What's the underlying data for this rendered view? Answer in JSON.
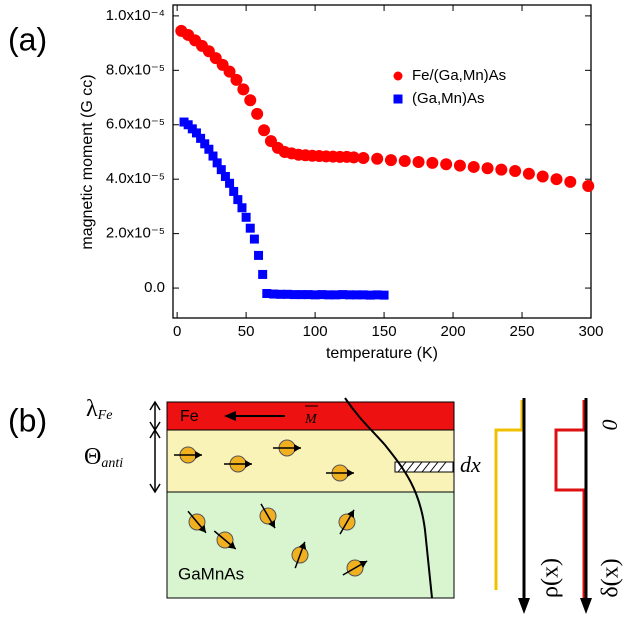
{
  "chart_data": {
    "type": "scatter",
    "panel_label": "(a)",
    "x_label": "temperature (K)",
    "y_label": "magnetic moment (G cc)",
    "xlim": [
      -3,
      300
    ],
    "xticks": [
      0,
      50,
      100,
      150,
      200,
      250,
      300
    ],
    "ylim": [
      -1.1e-05,
      0.000104
    ],
    "yticks": [
      {
        "value": 0,
        "label": "0.0"
      },
      {
        "value": 2e-05,
        "label": "2.0x10⁻⁵"
      },
      {
        "value": 4e-05,
        "label": "4.0x10⁻⁵"
      },
      {
        "value": 6e-05,
        "label": "6.0x10⁻⁵"
      },
      {
        "value": 8e-05,
        "label": "8.0x10⁻⁵"
      },
      {
        "value": 0.0001,
        "label": "1.0x10⁻⁴"
      }
    ],
    "legend": "upper right",
    "series": [
      {
        "name": "Fe/(Ga,Mn)As",
        "color": "#ff0000",
        "marker": "circle",
        "x": [
          3,
          8,
          13,
          18,
          23,
          28,
          33,
          38,
          43,
          48,
          53,
          58,
          63,
          68,
          73,
          78,
          83,
          88,
          93,
          98,
          103,
          108,
          113,
          118,
          123,
          128,
          135,
          145,
          155,
          165,
          175,
          185,
          195,
          205,
          215,
          225,
          235,
          245,
          255,
          265,
          275,
          285,
          298
        ],
        "values": [
          9.45e-05,
          9.3e-05,
          9.1e-05,
          8.9e-05,
          8.7e-05,
          8.45e-05,
          8.2e-05,
          7.95e-05,
          7.65e-05,
          7.3e-05,
          6.9e-05,
          6.4e-05,
          5.8e-05,
          5.4e-05,
          5.15e-05,
          5e-05,
          4.95e-05,
          4.9e-05,
          4.88e-05,
          4.86e-05,
          4.85e-05,
          4.84e-05,
          4.83e-05,
          4.82e-05,
          4.82e-05,
          4.8e-05,
          4.78e-05,
          4.75e-05,
          4.7e-05,
          4.67e-05,
          4.63e-05,
          4.6e-05,
          4.55e-05,
          4.5e-05,
          4.45e-05,
          4.4e-05,
          4.35e-05,
          4.3e-05,
          4.2e-05,
          4.1e-05,
          4e-05,
          3.9e-05,
          3.75e-05
        ]
      },
      {
        "name": "(Ga,Mn)As",
        "color": "#0000ff",
        "marker": "square",
        "x": [
          5,
          8,
          11,
          14,
          17,
          20,
          23,
          26,
          29,
          32,
          35,
          38,
          41,
          44,
          47,
          50,
          53,
          56,
          59,
          62,
          65,
          70,
          75,
          80,
          85,
          90,
          95,
          100,
          105,
          110,
          115,
          120,
          125,
          130,
          135,
          140,
          145,
          150
        ],
        "values": [
          6.1e-05,
          6e-05,
          5.85e-05,
          5.7e-05,
          5.5e-05,
          5.3e-05,
          5.1e-05,
          4.85e-05,
          4.6e-05,
          4.35e-05,
          4.1e-05,
          3.85e-05,
          3.55e-05,
          3.25e-05,
          2.95e-05,
          2.6e-05,
          2.2e-05,
          1.8e-05,
          1.2e-05,
          5e-06,
          -2e-06,
          -2.2e-06,
          -2.3e-06,
          -2.3e-06,
          -2.4e-06,
          -2.4e-06,
          -2.4e-06,
          -2.5e-06,
          -2.4e-06,
          -2.5e-06,
          -2.5e-06,
          -2.4e-06,
          -2.5e-06,
          -2.5e-06,
          -2.5e-06,
          -2.6e-06,
          -2.5e-06,
          -2.6e-06
        ]
      }
    ]
  },
  "diagram": {
    "panel_label": "(b)",
    "lambda": {
      "symbol": "λ",
      "subscript": "Fe"
    },
    "theta": {
      "symbol": "Θ",
      "subscript": "anti"
    },
    "fe_layer": "Fe",
    "magnetization": "M",
    "slice": "dx",
    "ga_mn_as_layer": "GaMnAs",
    "rho": "ρ(x)",
    "delta": "δ(x)",
    "origin": "0"
  }
}
